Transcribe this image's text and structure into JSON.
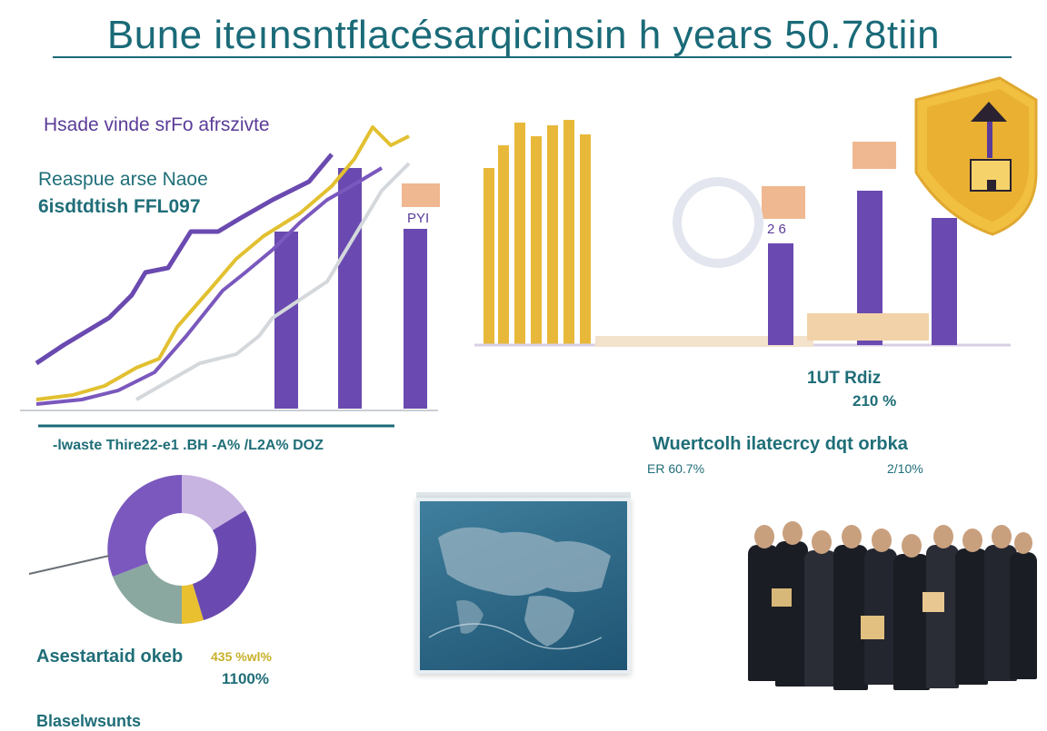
{
  "header": {
    "title": "Bune iteınsntflacésarqicinsin h years 50.78tiin"
  },
  "left_panel": {
    "label_main": "Hsade vinde srFo afrszivte",
    "label_sub_1": "Reaspue arse Naoe",
    "label_sub_2": "6isdtdtish FFL097",
    "bar_tag": "PYI",
    "footer_text": "-lwaste Thire22-e1 .BH -A% /L2A% DOZ"
  },
  "middle_panel": {
    "bar_tag": "2 6"
  },
  "right_panel": {
    "stat_label": "1UT Rdiz",
    "stat_value": "210 %",
    "heading": "Wuertcolh ilatecrcy dqt orbka",
    "value_left": "ER 60.7%",
    "value_right": "2/10%"
  },
  "bottom_left": {
    "caption": "Asestartaid okeb",
    "caption_value": "435 %wl%",
    "caption_pct": "1100%",
    "footer_cut": "Blaselwsunts"
  },
  "colors": {
    "purple": "#6a4ab0",
    "gold": "#e8b83a",
    "teal": "#1a6a78",
    "peach": "#f0b890",
    "lilac": "#c8b4e0",
    "sage": "#8aa8a0"
  },
  "icons": {
    "shield": "shield-icon",
    "map": "world-map",
    "crowd": "people-group"
  }
}
